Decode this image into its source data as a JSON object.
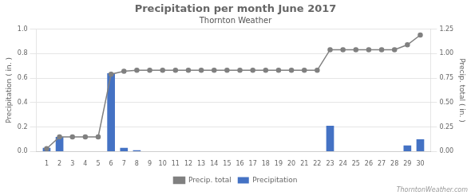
{
  "chart_data": {
    "type": "bar",
    "title": "Precipitation per month June 2017",
    "subtitle": "Thornton Weather",
    "annotations": [
      "ThorntonWeather.com"
    ],
    "x": [
      1,
      2,
      3,
      4,
      5,
      6,
      7,
      8,
      9,
      10,
      11,
      12,
      13,
      14,
      15,
      16,
      17,
      18,
      19,
      20,
      21,
      22,
      23,
      24,
      25,
      26,
      27,
      28,
      29,
      30
    ],
    "xlim": [
      0.2,
      30.8
    ],
    "xticks": [
      1,
      2,
      3,
      4,
      5,
      6,
      7,
      8,
      9,
      10,
      11,
      12,
      13,
      14,
      15,
      16,
      17,
      18,
      19,
      20,
      21,
      22,
      23,
      24,
      25,
      26,
      27,
      28,
      29,
      30
    ],
    "ylabel": "Precipitation ( in. )",
    "y2label": "Precip. total ( in. )",
    "ylim": [
      0,
      1.0
    ],
    "yticks": [
      {
        "value": 0,
        "label": "0.0"
      },
      0.2,
      0.4,
      0.6,
      0.8,
      {
        "value": 1.0,
        "label": "1.0"
      }
    ],
    "y2lim": [
      0,
      1.25
    ],
    "y2ticks": [
      {
        "value": 0,
        "label": "0.00"
      },
      0.25,
      {
        "value": 0.5,
        "label": "0.50"
      },
      0.75,
      {
        "value": 1.0,
        "label": "1.00"
      },
      1.25
    ],
    "grid": true,
    "legend": "bottom",
    "series": [
      {
        "name": "Precipitation",
        "type": "bar",
        "color": "#4472c4",
        "values": [
          0.03,
          0.12,
          0.0,
          0.0,
          0.0,
          0.64,
          0.03,
          0.01,
          0.0,
          0.0,
          0.0,
          0.0,
          0.0,
          0.0,
          0.0,
          0.0,
          0.0,
          0.0,
          0.0,
          0.0,
          0.0,
          0.0,
          0.21,
          0.0,
          0.0,
          0.0,
          0.0,
          0.0,
          0.05,
          0.1
        ]
      },
      {
        "name": "Precip. total",
        "type": "line",
        "color": "#808080",
        "marker": "circle",
        "axis": "y2",
        "values": [
          0.03,
          0.15,
          0.15,
          0.15,
          0.15,
          0.79,
          0.82,
          0.83,
          0.83,
          0.83,
          0.83,
          0.83,
          0.83,
          0.83,
          0.83,
          0.83,
          0.83,
          0.83,
          0.83,
          0.83,
          0.83,
          0.83,
          1.04,
          1.04,
          1.04,
          1.04,
          1.04,
          1.04,
          1.09,
          1.19
        ]
      }
    ]
  }
}
